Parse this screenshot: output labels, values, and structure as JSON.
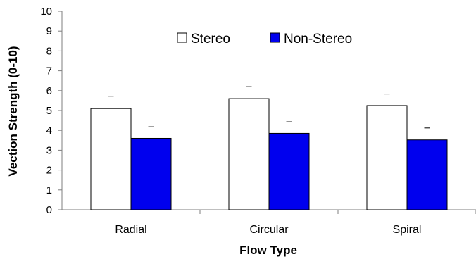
{
  "chart_data": {
    "type": "bar",
    "xlabel": "Flow Type",
    "ylabel": "Vection Strength (0-10)",
    "ylim": [
      0,
      10
    ],
    "yticks": [
      0,
      1,
      2,
      3,
      4,
      5,
      6,
      7,
      8,
      9,
      10
    ],
    "categories": [
      "Radial",
      "Circular",
      "Spiral"
    ],
    "series": [
      {
        "name": "Stereo",
        "color": "#ffffff",
        "values": [
          5.1,
          5.6,
          5.25
        ],
        "errors": [
          0.62,
          0.6,
          0.58
        ]
      },
      {
        "name": "Non-Stereo",
        "color": "#0000ee",
        "values": [
          3.6,
          3.85,
          3.52
        ],
        "errors": [
          0.58,
          0.58,
          0.6
        ]
      }
    ],
    "legend_position": "top",
    "grid": false
  }
}
